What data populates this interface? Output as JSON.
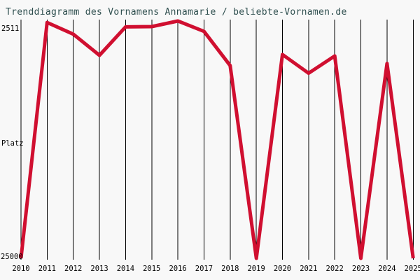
{
  "colors": {
    "background": "#f8f8f8",
    "title_text": "#2f4f4f",
    "axis_text": "#000000",
    "gridline": "#000000",
    "line": "#d00f30"
  },
  "chart_data": {
    "type": "line",
    "title": "Trenddiagramm des Vornamens Annamarie / beliebte-Vornamen.de",
    "ylabel": "Platz",
    "y_ticks": {
      "top": "2511",
      "bottom": "25000"
    },
    "ylim": [
      2511,
      25000
    ],
    "y_axis_inverted": true,
    "grid": "vertical-only",
    "legend": "none",
    "line_color": "#d00f30",
    "categories": [
      "2010",
      "2011",
      "2012",
      "2013",
      "2014",
      "2015",
      "2016",
      "2017",
      "2018",
      "2019",
      "2020",
      "2021",
      "2022",
      "2023",
      "2024",
      "2025"
    ],
    "values": [
      25000,
      2650,
      3760,
      5760,
      3070,
      3040,
      2511,
      3490,
      6740,
      25000,
      5690,
      7460,
      5820,
      25000,
      6540,
      25000
    ]
  }
}
